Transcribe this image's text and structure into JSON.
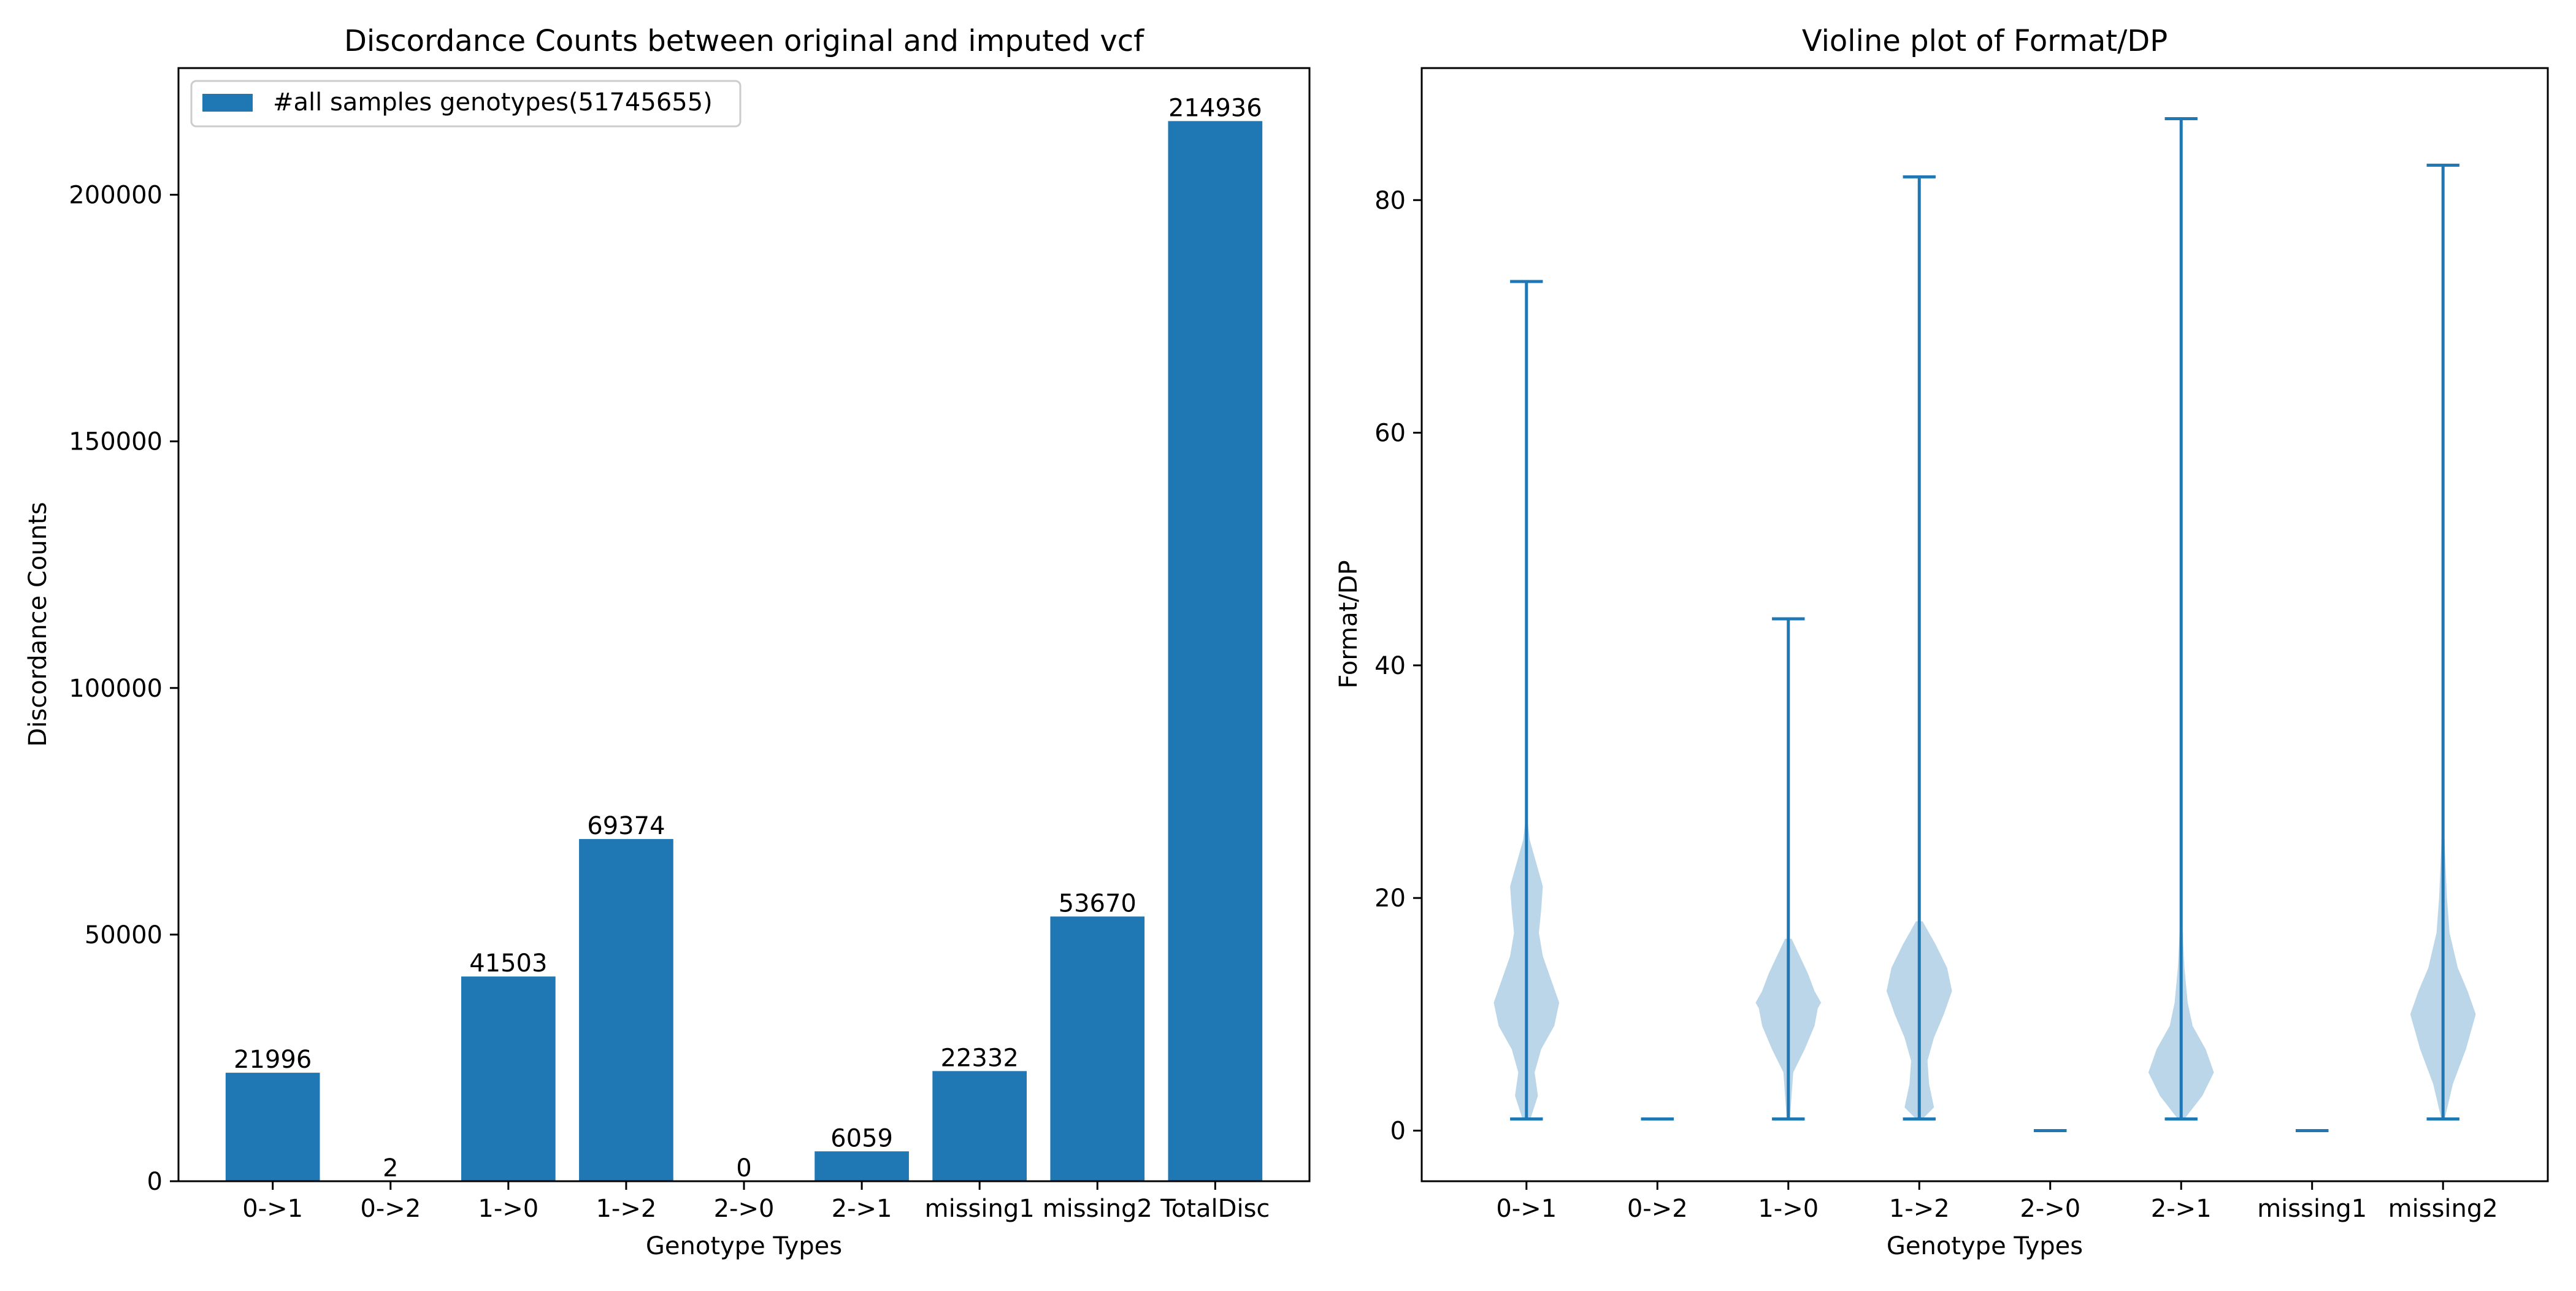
{
  "colors": {
    "bar": "#1f77b4",
    "violin_fill": "#1f77b4",
    "violin_line": "#1f77b4",
    "axis": "#000000",
    "background": "#ffffff"
  },
  "chart_data": [
    {
      "type": "bar",
      "title": "Discordance Counts between original and imputed vcf",
      "xlabel": "Genotype Types",
      "ylabel": "Discordance Counts",
      "categories": [
        "0->1",
        "0->2",
        "1->0",
        "1->2",
        "2->0",
        "2->1",
        "missing1",
        "missing2",
        "TotalDisc"
      ],
      "values": [
        21996,
        2,
        41503,
        69374,
        0,
        6059,
        22332,
        53670,
        214936
      ],
      "value_labels": [
        "21996",
        "2",
        "41503",
        "69374",
        "0",
        "6059",
        "22332",
        "53670",
        "214936"
      ],
      "ylim": [
        0,
        225680
      ],
      "yticks": [
        0,
        50000,
        100000,
        150000,
        200000
      ],
      "ytick_labels": [
        "0",
        "50000",
        "100000",
        "150000",
        "200000"
      ],
      "legend": {
        "label": "#all samples genotypes(51745655)",
        "loc": "upper left"
      },
      "grid": false
    },
    {
      "type": "violin",
      "title": "Violine plot of Format/DP",
      "xlabel": "Genotype Types",
      "ylabel": "Format/DP",
      "categories": [
        "0->1",
        "0->2",
        "1->0",
        "1->2",
        "2->0",
        "2->1",
        "missing1",
        "missing2"
      ],
      "ylim": [
        -4.35,
        91.35
      ],
      "yticks": [
        0,
        20,
        40,
        60,
        80
      ],
      "ytick_labels": [
        "0",
        "20",
        "40",
        "60",
        "80"
      ],
      "grid": false,
      "series": [
        {
          "name": "0->1",
          "min": 1,
          "max": 73,
          "density": [
            [
              1,
              0.12
            ],
            [
              3,
              0.35
            ],
            [
              5,
              0.25
            ],
            [
              7,
              0.45
            ],
            [
              9,
              0.85
            ],
            [
              11,
              1.0
            ],
            [
              13,
              0.75
            ],
            [
              15,
              0.5
            ],
            [
              17,
              0.38
            ],
            [
              19,
              0.45
            ],
            [
              21,
              0.5
            ],
            [
              23,
              0.3
            ],
            [
              25,
              0.1
            ],
            [
              27,
              0.02
            ]
          ]
        },
        {
          "name": "0->2",
          "min": 1,
          "max": 1,
          "density": []
        },
        {
          "name": "1->0",
          "min": 1,
          "max": 44,
          "density": [
            [
              1,
              0.05
            ],
            [
              5,
              0.15
            ],
            [
              7,
              0.5
            ],
            [
              9,
              0.8
            ],
            [
              10.5,
              0.9
            ],
            [
              11,
              1.0
            ],
            [
              12,
              0.8
            ],
            [
              13.5,
              0.6
            ],
            [
              15,
              0.35
            ],
            [
              16.5,
              0.1
            ]
          ]
        },
        {
          "name": "1->2",
          "min": 1,
          "max": 82,
          "density": [
            [
              1,
              0.1
            ],
            [
              2,
              0.45
            ],
            [
              4,
              0.3
            ],
            [
              6,
              0.25
            ],
            [
              8,
              0.45
            ],
            [
              10,
              0.75
            ],
            [
              12,
              1.0
            ],
            [
              14,
              0.85
            ],
            [
              16,
              0.5
            ],
            [
              18,
              0.1
            ]
          ]
        },
        {
          "name": "2->0",
          "min": 0,
          "max": 0,
          "density": []
        },
        {
          "name": "2->1",
          "min": 1,
          "max": 87,
          "density": [
            [
              1,
              0.1
            ],
            [
              3,
              0.65
            ],
            [
              5,
              1.0
            ],
            [
              7,
              0.75
            ],
            [
              9,
              0.35
            ],
            [
              11,
              0.2
            ],
            [
              14,
              0.1
            ],
            [
              18,
              0.03
            ]
          ]
        },
        {
          "name": "missing1",
          "min": 0,
          "max": 0,
          "density": []
        },
        {
          "name": "missing2",
          "min": 1,
          "max": 83,
          "density": [
            [
              1,
              0.05
            ],
            [
              4,
              0.3
            ],
            [
              7,
              0.7
            ],
            [
              10,
              1.0
            ],
            [
              12,
              0.75
            ],
            [
              14,
              0.45
            ],
            [
              17,
              0.2
            ],
            [
              20,
              0.12
            ],
            [
              24,
              0.06
            ],
            [
              28,
              0.01
            ]
          ]
        }
      ]
    }
  ]
}
